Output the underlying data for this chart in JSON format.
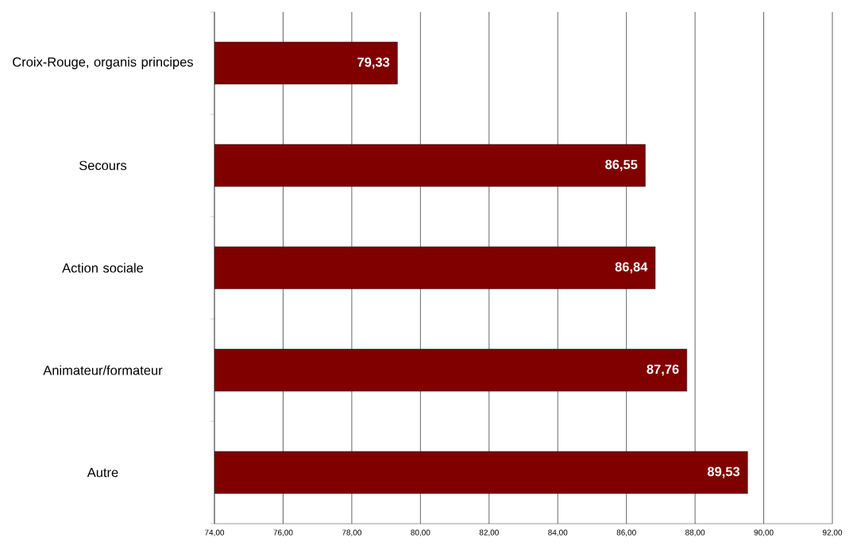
{
  "chart_data": {
    "type": "bar",
    "orientation": "horizontal",
    "categories": [
      "Croix-Rouge, organis principes",
      "Secours",
      "Action sociale",
      "Animateur/formateur",
      "Autre"
    ],
    "values": [
      79.33,
      86.55,
      86.84,
      87.76,
      89.53
    ],
    "value_labels": [
      "79,33",
      "86,55",
      "86,84",
      "87,76",
      "89,53"
    ],
    "color": "#800000",
    "xlim": [
      74,
      92
    ],
    "xticks": [
      {
        "value": 74,
        "label": "74,00"
      },
      {
        "value": 76,
        "label": "76,00"
      },
      {
        "value": 78,
        "label": "78,00"
      },
      {
        "value": 80,
        "label": "80,00"
      },
      {
        "value": 82,
        "label": "82,00"
      },
      {
        "value": 84,
        "label": "84,00"
      },
      {
        "value": 86,
        "label": "86,00"
      },
      {
        "value": 88,
        "label": "88,00"
      },
      {
        "value": 90,
        "label": "90,00"
      },
      {
        "value": 92,
        "label": "92,00"
      }
    ],
    "grid": "x"
  }
}
